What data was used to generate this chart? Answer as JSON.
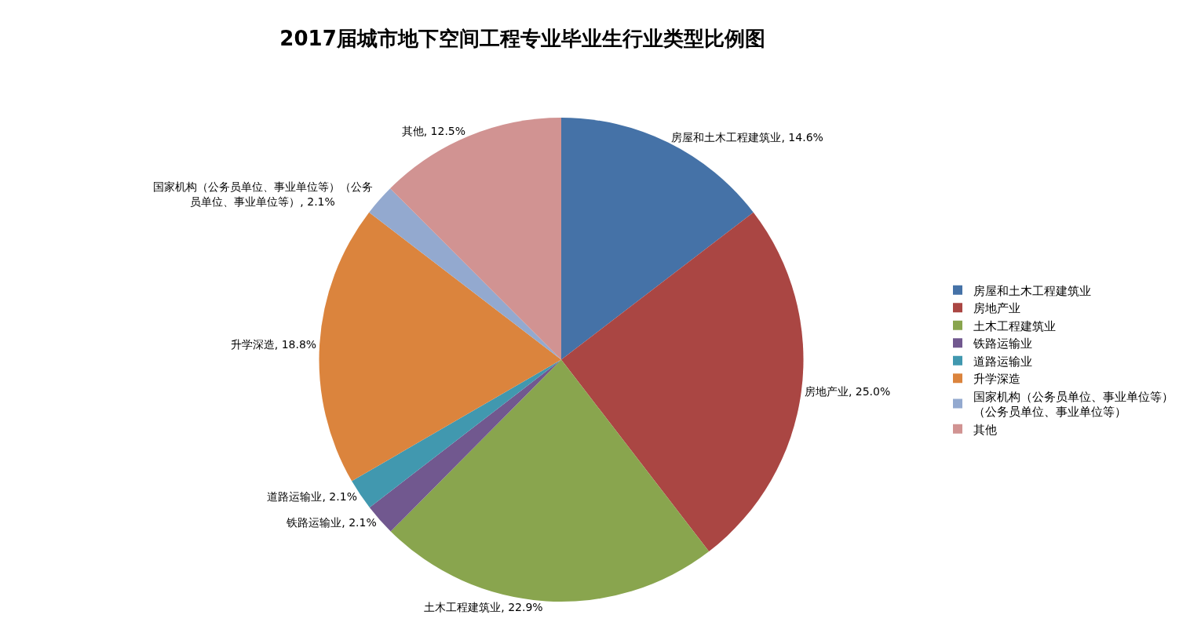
{
  "chart_data": {
    "type": "pie",
    "title": "2017届城市地下空间工程专业毕业生行业类型比例图",
    "categories": [
      "房屋和土木工程建筑业",
      "房地产业",
      "土木工程建筑业",
      "铁路运输业",
      "道路运输业",
      "升学深造",
      "国家机构（公务员单位、事业单位等）（公务员单位、事业单位等）",
      "其他"
    ],
    "values": [
      14.6,
      25.0,
      22.9,
      2.1,
      2.1,
      18.8,
      2.1,
      12.5
    ],
    "value_labels": [
      "房屋和土木工程建筑业, 14.6%",
      "房地产业, 25.0%",
      "土木工程建筑业, 22.9%",
      "铁路运输业, 2.1%",
      "道路运输业, 2.1%",
      "升学深造, 18.8%",
      "国家机构（公务员单位、事业单位等）（公务员单位、事业单位等）, 2.1%",
      "其他, 12.5%"
    ],
    "colors": [
      "#4572a7",
      "#aa4643",
      "#89a54e",
      "#71588f",
      "#4198af",
      "#db843d",
      "#93a9cf",
      "#d19392"
    ],
    "legend": "right"
  }
}
